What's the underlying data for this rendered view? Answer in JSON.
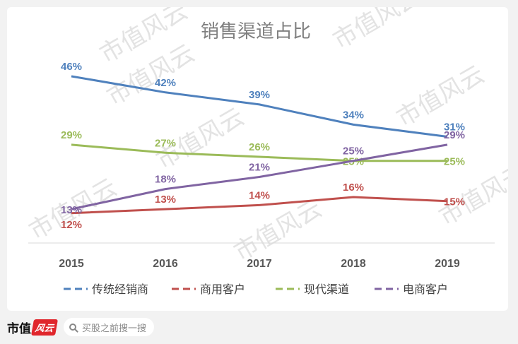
{
  "chart_data": {
    "type": "line",
    "title": "销售渠道占比",
    "categories": [
      "2015",
      "2016",
      "2017",
      "2018",
      "2019"
    ],
    "series": [
      {
        "name": "传统经销商",
        "color": "#4f81bd",
        "values": [
          46,
          42,
          39,
          34,
          31
        ],
        "labels": [
          "46%",
          "42%",
          "39%",
          "34%",
          "31%"
        ]
      },
      {
        "name": "商用客户",
        "color": "#c0504d",
        "values": [
          12,
          13,
          14,
          16,
          15
        ],
        "labels": [
          "12%",
          "13%",
          "14%",
          "16%",
          "15%"
        ]
      },
      {
        "name": "现代渠道",
        "color": "#9bbb59",
        "values": [
          29,
          27,
          26,
          25,
          25
        ],
        "labels": [
          "29%",
          "27%",
          "26%",
          "25%",
          "25%"
        ]
      },
      {
        "name": "电商客户",
        "color": "#8064a2",
        "values": [
          13,
          18,
          21,
          25,
          29
        ],
        "labels": [
          "13%",
          "18%",
          "21%",
          "25%",
          "29%"
        ]
      }
    ],
    "legend_position": "bottom",
    "grid": false,
    "line_style": "solid",
    "data_labels": true
  },
  "watermark_text": "市值风云",
  "footer": {
    "logo_text": "市值",
    "logo_mark": "风云",
    "search_icon": "search-icon",
    "search_placeholder": "买股之前搜一搜"
  }
}
